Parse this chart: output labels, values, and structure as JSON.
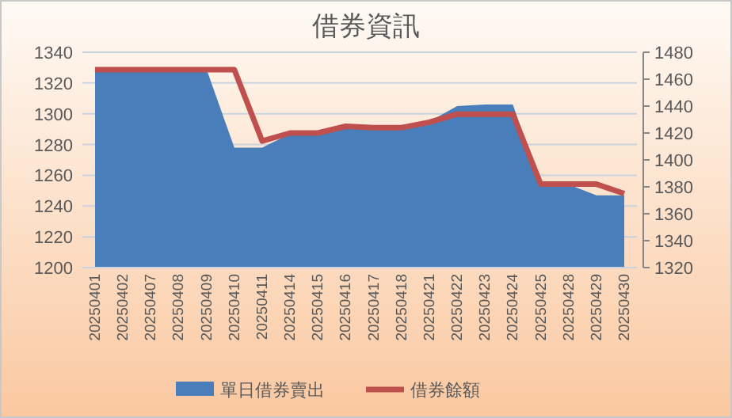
{
  "chart_data": {
    "type": "area",
    "title": "借券資訊",
    "categories": [
      "20250401",
      "20250402",
      "20250407",
      "20250408",
      "20250409",
      "20250410",
      "20250411",
      "20250414",
      "20250415",
      "20250416",
      "20250417",
      "20250418",
      "20250421",
      "20250422",
      "20250423",
      "20250424",
      "20250425",
      "20250428",
      "20250429",
      "20250430"
    ],
    "series": [
      {
        "name": "單日借券賣出",
        "color": "#4a7ebb",
        "values": [
          1329,
          1329,
          1329,
          1329,
          1329,
          1278,
          1278,
          1287,
          1287,
          1291,
          1290,
          1291,
          1295,
          1305,
          1306,
          1306,
          1254,
          1254,
          1247,
          1247
        ]
      },
      {
        "name": "借券餘額",
        "type": "line",
        "axis": "y2",
        "color": "#c0504d",
        "values": [
          1467,
          1467,
          1467,
          1467,
          1467,
          1467,
          1414,
          1420,
          1420,
          1425,
          1424,
          1424,
          1428,
          1434,
          1434,
          1434,
          1382,
          1382,
          1382,
          1375
        ]
      }
    ],
    "ylim": [
      1200,
      1340
    ],
    "yticks": [
      1200,
      1220,
      1240,
      1260,
      1280,
      1300,
      1320,
      1340
    ],
    "y2lim": [
      1320,
      1480
    ],
    "y2ticks": [
      1320,
      1340,
      1360,
      1380,
      1400,
      1420,
      1440,
      1460,
      1480
    ],
    "grid": "y",
    "legend": "bottom"
  }
}
